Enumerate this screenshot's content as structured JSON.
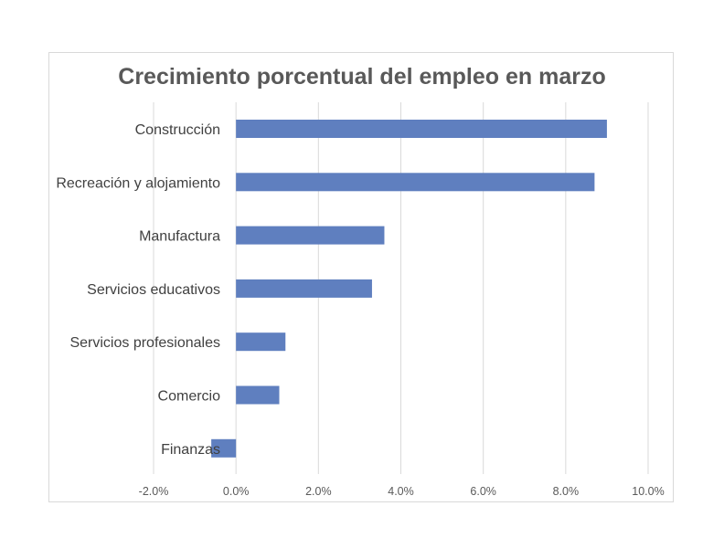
{
  "chart_data": {
    "type": "bar",
    "orientation": "horizontal",
    "title": "Crecimiento porcentual del empleo en marzo",
    "xlabel": "",
    "ylabel": "",
    "categories": [
      "Construcción",
      "Recreación y alojamiento",
      "Manufactura",
      "Servicios educativos",
      "Servicios profesionales",
      "Comercio",
      "Finanzas"
    ],
    "values": [
      9.0,
      8.7,
      3.6,
      3.3,
      1.2,
      1.05,
      -0.6
    ],
    "xlim": [
      -2.0,
      10.0
    ],
    "xticks": [
      -2.0,
      0.0,
      2.0,
      4.0,
      6.0,
      8.0,
      10.0
    ],
    "xtick_labels": [
      "-2.0%",
      "0.0%",
      "2.0%",
      "4.0%",
      "6.0%",
      "8.0%",
      "10.0%"
    ],
    "grid": true,
    "legend": "none",
    "bar_color": "#5f7fbf"
  }
}
